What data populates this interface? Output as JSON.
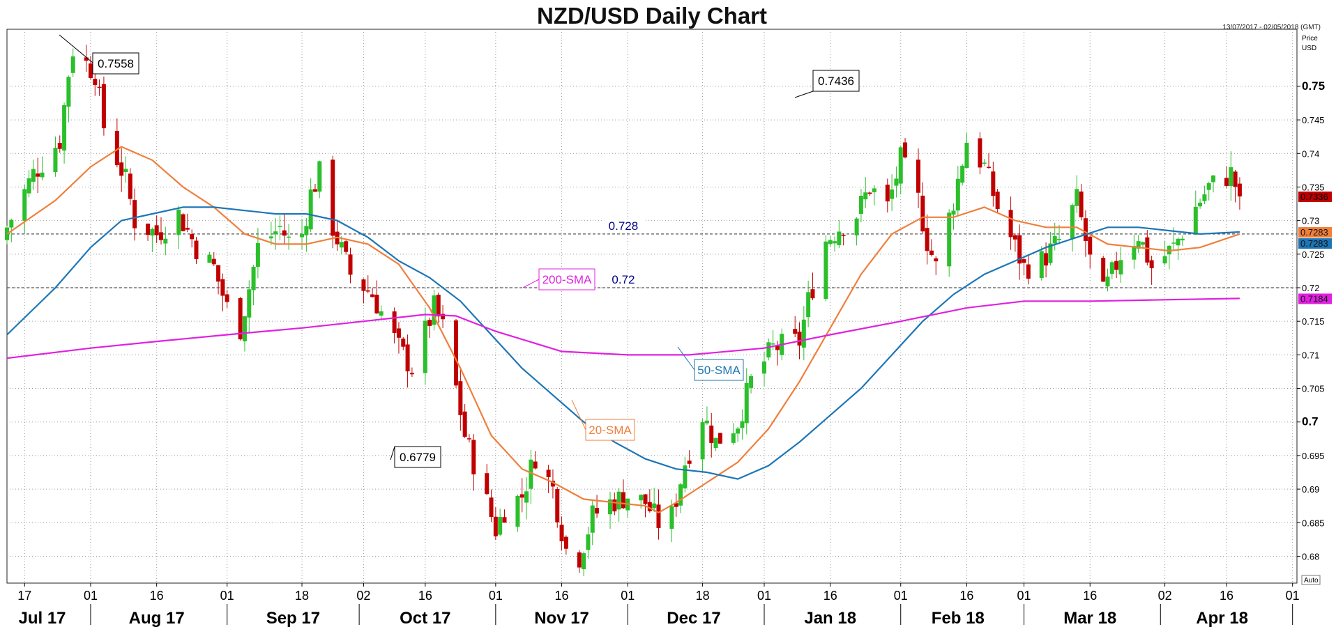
{
  "header": {
    "title": "NZD/USD Daily Chart",
    "date_range": "13/07/2017 - 02/05/2018 (GMT)"
  },
  "colors": {
    "bull": "#2bbf2b",
    "bear": "#c00000",
    "sma20": "#f07f3c",
    "sma50": "#1c76b6",
    "sma200": "#e020e0",
    "grid": "#9a9a9a",
    "hline_label": "#00008b"
  },
  "chart_data": {
    "type": "candlestick",
    "title": "NZD/USD Daily Chart",
    "ylabel_lines": [
      "Price",
      "USD"
    ],
    "y_axis_position": "right",
    "ylim": [
      0.676,
      0.7585
    ],
    "y_ticks": [
      {
        "value": 0.75,
        "label": "0.75",
        "bold": true
      },
      {
        "value": 0.745,
        "label": "0.745"
      },
      {
        "value": 0.74,
        "label": "0.74"
      },
      {
        "value": 0.735,
        "label": "0.735"
      },
      {
        "value": 0.73,
        "label": "0.73"
      },
      {
        "value": 0.725,
        "label": "0.725"
      },
      {
        "value": 0.72,
        "label": "0.72"
      },
      {
        "value": 0.715,
        "label": "0.715"
      },
      {
        "value": 0.71,
        "label": "0.71"
      },
      {
        "value": 0.705,
        "label": "0.705"
      },
      {
        "value": 0.7,
        "label": "0.7",
        "bold": true
      },
      {
        "value": 0.695,
        "label": "0.695"
      },
      {
        "value": 0.69,
        "label": "0.69"
      },
      {
        "value": 0.685,
        "label": "0.685"
      },
      {
        "value": 0.68,
        "label": "0.68"
      }
    ],
    "auto_label": "Auto",
    "x_range": [
      "2017-07-13",
      "2018-05-02"
    ],
    "x_day_ticks": [
      {
        "date": "2017-07-17",
        "label": "17"
      },
      {
        "date": "2017-08-01",
        "label": "01"
      },
      {
        "date": "2017-08-16",
        "label": "16"
      },
      {
        "date": "2017-09-01",
        "label": "01"
      },
      {
        "date": "2017-09-18",
        "label": "18"
      },
      {
        "date": "2017-10-02",
        "label": "02"
      },
      {
        "date": "2017-10-16",
        "label": "16"
      },
      {
        "date": "2017-11-01",
        "label": "01"
      },
      {
        "date": "2017-11-16",
        "label": "16"
      },
      {
        "date": "2017-12-01",
        "label": "01"
      },
      {
        "date": "2017-12-18",
        "label": "18"
      },
      {
        "date": "2018-01-01",
        "label": "01"
      },
      {
        "date": "2018-01-16",
        "label": "16"
      },
      {
        "date": "2018-02-01",
        "label": "01"
      },
      {
        "date": "2018-02-16",
        "label": "16"
      },
      {
        "date": "2018-03-01",
        "label": "01"
      },
      {
        "date": "2018-03-16",
        "label": "16"
      },
      {
        "date": "2018-04-02",
        "label": "02"
      },
      {
        "date": "2018-04-16",
        "label": "16"
      },
      {
        "date": "2018-05-01",
        "label": "01"
      }
    ],
    "x_month_labels": [
      {
        "date": "2017-07-21",
        "label": "Jul 17"
      },
      {
        "date": "2017-08-16",
        "label": "Aug 17"
      },
      {
        "date": "2017-09-16",
        "label": "Sep 17"
      },
      {
        "date": "2017-10-16",
        "label": "Oct 17"
      },
      {
        "date": "2017-11-16",
        "label": "Nov 17"
      },
      {
        "date": "2017-12-16",
        "label": "Dec 17"
      },
      {
        "date": "2018-01-16",
        "label": "Jan 18"
      },
      {
        "date": "2018-02-14",
        "label": "Feb 18"
      },
      {
        "date": "2018-03-16",
        "label": "Mar 18"
      },
      {
        "date": "2018-04-15",
        "label": "Apr 18"
      }
    ],
    "x_month_separators": [
      "2017-08-01",
      "2017-09-01",
      "2017-10-01",
      "2017-11-01",
      "2017-12-01",
      "2018-01-01",
      "2018-02-01",
      "2018-03-01",
      "2018-04-01",
      "2018-05-01"
    ],
    "horizontal_levels": [
      {
        "value": 0.728,
        "label": "0.728",
        "label_date": "2017-11-30"
      },
      {
        "value": 0.72,
        "label": "0.72",
        "label_date": "2017-11-30"
      }
    ],
    "candle_anchors": [
      [
        "2017-07-13",
        0.729
      ],
      [
        "2017-07-19",
        0.737
      ],
      [
        "2017-07-25",
        0.742
      ],
      [
        "2017-07-27",
        0.752
      ],
      [
        "2017-07-28",
        0.7555
      ],
      [
        "2017-08-02",
        0.752
      ],
      [
        "2017-08-04",
        0.744
      ],
      [
        "2017-08-09",
        0.736
      ],
      [
        "2017-08-11",
        0.73
      ],
      [
        "2017-08-16",
        0.728
      ],
      [
        "2017-08-21",
        0.731
      ],
      [
        "2017-08-25",
        0.726
      ],
      [
        "2017-08-29",
        0.723
      ],
      [
        "2017-09-01",
        0.717
      ],
      [
        "2017-09-04",
        0.714
      ],
      [
        "2017-09-08",
        0.726
      ],
      [
        "2017-09-13",
        0.729
      ],
      [
        "2017-09-15",
        0.727
      ],
      [
        "2017-09-18",
        0.728
      ],
      [
        "2017-09-20",
        0.734
      ],
      [
        "2017-09-22",
        0.737
      ],
      [
        "2017-09-25",
        0.729
      ],
      [
        "2017-09-29",
        0.722
      ],
      [
        "2017-10-04",
        0.719
      ],
      [
        "2017-10-10",
        0.711
      ],
      [
        "2017-10-13",
        0.708
      ],
      [
        "2017-10-18",
        0.717
      ],
      [
        "2017-10-20",
        0.714
      ],
      [
        "2017-10-23",
        0.705
      ],
      [
        "2017-10-25",
        0.698
      ],
      [
        "2017-10-30",
        0.688
      ],
      [
        "2017-11-01",
        0.684
      ],
      [
        "2017-11-03",
        0.687
      ],
      [
        "2017-11-07",
        0.689
      ],
      [
        "2017-11-10",
        0.695
      ],
      [
        "2017-11-14",
        0.69
      ],
      [
        "2017-11-17",
        0.681
      ],
      [
        "2017-11-20",
        0.68
      ],
      [
        "2017-11-23",
        0.686
      ],
      [
        "2017-11-27",
        0.688
      ],
      [
        "2017-12-01",
        0.689
      ],
      [
        "2017-12-05",
        0.688
      ],
      [
        "2017-12-08",
        0.685
      ],
      [
        "2017-12-11",
        0.686
      ],
      [
        "2017-12-14",
        0.694
      ],
      [
        "2017-12-18",
        0.701
      ],
      [
        "2017-12-21",
        0.697
      ],
      [
        "2017-12-26",
        0.7
      ],
      [
        "2017-12-29",
        0.706
      ],
      [
        "2018-01-03",
        0.711
      ],
      [
        "2018-01-09",
        0.712
      ],
      [
        "2018-01-11",
        0.718
      ],
      [
        "2018-01-15",
        0.727
      ],
      [
        "2018-01-18",
        0.729
      ],
      [
        "2018-01-22",
        0.731
      ],
      [
        "2018-01-25",
        0.735
      ],
      [
        "2018-01-29",
        0.732
      ],
      [
        "2018-02-01",
        0.739
      ],
      [
        "2018-02-05",
        0.733
      ],
      [
        "2018-02-07",
        0.727
      ],
      [
        "2018-02-09",
        0.723
      ],
      [
        "2018-02-13",
        0.733
      ],
      [
        "2018-02-16",
        0.742
      ],
      [
        "2018-02-20",
        0.738
      ],
      [
        "2018-02-23",
        0.732
      ],
      [
        "2018-02-27",
        0.726
      ],
      [
        "2018-03-01",
        0.723
      ],
      [
        "2018-03-05",
        0.724
      ],
      [
        "2018-03-09",
        0.727
      ],
      [
        "2018-03-13",
        0.733
      ],
      [
        "2018-03-16",
        0.724
      ],
      [
        "2018-03-19",
        0.719
      ],
      [
        "2018-03-23",
        0.725
      ],
      [
        "2018-03-27",
        0.728
      ],
      [
        "2018-03-30",
        0.723
      ],
      [
        "2018-04-04",
        0.726
      ],
      [
        "2018-04-09",
        0.732
      ],
      [
        "2018-04-12",
        0.735
      ],
      [
        "2018-04-17",
        0.737
      ],
      [
        "2018-04-19",
        0.7336
      ]
    ],
    "series": [
      {
        "name": "20-SMA",
        "color": "#f07f3c",
        "points": [
          [
            "2017-07-13",
            0.728
          ],
          [
            "2017-07-24",
            0.733
          ],
          [
            "2017-08-01",
            0.738
          ],
          [
            "2017-08-08",
            0.741
          ],
          [
            "2017-08-15",
            0.739
          ],
          [
            "2017-08-22",
            0.735
          ],
          [
            "2017-08-29",
            0.732
          ],
          [
            "2017-09-05",
            0.728
          ],
          [
            "2017-09-12",
            0.7265
          ],
          [
            "2017-09-19",
            0.7265
          ],
          [
            "2017-09-26",
            0.7275
          ],
          [
            "2017-10-03",
            0.7265
          ],
          [
            "2017-10-10",
            0.7235
          ],
          [
            "2017-10-17",
            0.717
          ],
          [
            "2017-10-24",
            0.708
          ],
          [
            "2017-10-31",
            0.698
          ],
          [
            "2017-11-07",
            0.693
          ],
          [
            "2017-11-14",
            0.691
          ],
          [
            "2017-11-21",
            0.6885
          ],
          [
            "2017-11-28",
            0.688
          ],
          [
            "2017-12-05",
            0.6875
          ],
          [
            "2017-12-08",
            0.6865
          ],
          [
            "2017-12-12",
            0.688
          ],
          [
            "2017-12-19",
            0.691
          ],
          [
            "2017-12-26",
            0.694
          ],
          [
            "2018-01-02",
            0.699
          ],
          [
            "2018-01-09",
            0.706
          ],
          [
            "2018-01-16",
            0.714
          ],
          [
            "2018-01-23",
            0.722
          ],
          [
            "2018-01-30",
            0.728
          ],
          [
            "2018-02-06",
            0.7305
          ],
          [
            "2018-02-13",
            0.7305
          ],
          [
            "2018-02-20",
            0.732
          ],
          [
            "2018-02-27",
            0.73
          ],
          [
            "2018-03-06",
            0.729
          ],
          [
            "2018-03-13",
            0.729
          ],
          [
            "2018-03-20",
            0.7265
          ],
          [
            "2018-03-27",
            0.726
          ],
          [
            "2018-04-03",
            0.7255
          ],
          [
            "2018-04-10",
            0.726
          ],
          [
            "2018-04-19",
            0.728
          ]
        ]
      },
      {
        "name": "50-SMA",
        "color": "#1c76b6",
        "points": [
          [
            "2017-07-13",
            0.713
          ],
          [
            "2017-07-24",
            0.72
          ],
          [
            "2017-08-01",
            0.726
          ],
          [
            "2017-08-08",
            0.73
          ],
          [
            "2017-08-15",
            0.731
          ],
          [
            "2017-08-22",
            0.732
          ],
          [
            "2017-08-29",
            0.732
          ],
          [
            "2017-09-05",
            0.7315
          ],
          [
            "2017-09-12",
            0.731
          ],
          [
            "2017-09-19",
            0.731
          ],
          [
            "2017-09-26",
            0.73
          ],
          [
            "2017-10-03",
            0.7275
          ],
          [
            "2017-10-10",
            0.724
          ],
          [
            "2017-10-17",
            0.7215
          ],
          [
            "2017-10-24",
            0.718
          ],
          [
            "2017-10-31",
            0.713
          ],
          [
            "2017-11-07",
            0.708
          ],
          [
            "2017-11-14",
            0.704
          ],
          [
            "2017-11-21",
            0.7
          ],
          [
            "2017-11-28",
            0.697
          ],
          [
            "2017-12-05",
            0.6945
          ],
          [
            "2017-12-12",
            0.693
          ],
          [
            "2017-12-19",
            0.6925
          ],
          [
            "2017-12-26",
            0.6915
          ],
          [
            "2018-01-02",
            0.6935
          ],
          [
            "2018-01-09",
            0.697
          ],
          [
            "2018-01-16",
            0.701
          ],
          [
            "2018-01-23",
            0.705
          ],
          [
            "2018-01-30",
            0.71
          ],
          [
            "2018-02-06",
            0.715
          ],
          [
            "2018-02-13",
            0.719
          ],
          [
            "2018-02-20",
            0.722
          ],
          [
            "2018-02-27",
            0.724
          ],
          [
            "2018-03-06",
            0.726
          ],
          [
            "2018-03-13",
            0.7275
          ],
          [
            "2018-03-20",
            0.729
          ],
          [
            "2018-03-27",
            0.729
          ],
          [
            "2018-04-03",
            0.7285
          ],
          [
            "2018-04-10",
            0.728
          ],
          [
            "2018-04-19",
            0.7283
          ]
        ]
      },
      {
        "name": "200-SMA",
        "color": "#e020e0",
        "points": [
          [
            "2017-07-13",
            0.7095
          ],
          [
            "2017-08-01",
            0.711
          ],
          [
            "2017-08-16",
            0.712
          ],
          [
            "2017-09-01",
            0.713
          ],
          [
            "2017-09-18",
            0.714
          ],
          [
            "2017-10-02",
            0.715
          ],
          [
            "2017-10-16",
            0.716
          ],
          [
            "2017-10-23",
            0.7158
          ],
          [
            "2017-11-01",
            0.7135
          ],
          [
            "2017-11-16",
            0.7105
          ],
          [
            "2017-12-01",
            0.71
          ],
          [
            "2017-12-15",
            0.71
          ],
          [
            "2018-01-01",
            0.711
          ],
          [
            "2018-01-16",
            0.713
          ],
          [
            "2018-02-01",
            0.715
          ],
          [
            "2018-02-16",
            0.717
          ],
          [
            "2018-03-01",
            0.718
          ],
          [
            "2018-03-16",
            0.718
          ],
          [
            "2018-04-02",
            0.7182
          ],
          [
            "2018-04-19",
            0.7184
          ]
        ]
      }
    ],
    "callouts": [
      {
        "label": "0.7558",
        "date": "2017-07-28",
        "value": 0.7558
      },
      {
        "label": "0.7436",
        "date": "2018-02-16",
        "value": 0.7436
      },
      {
        "label": "0.6779",
        "date": "2017-11-17",
        "value": 0.6779
      }
    ],
    "series_labels": [
      {
        "label": "200-SMA",
        "series": "200-SMA"
      },
      {
        "label": "50-SMA",
        "series": "50-SMA"
      },
      {
        "label": "20-SMA",
        "series": "20-SMA"
      }
    ],
    "price_tags": [
      {
        "label": "0.7336",
        "value": 0.7336,
        "color": "#c00000"
      },
      {
        "label": "0.7283",
        "value": 0.7283,
        "color": "#f07f3c"
      },
      {
        "label": "0.7283",
        "value": 0.7283,
        "color": "#1c76b6"
      },
      {
        "label": "0.7184",
        "value": 0.7184,
        "color": "#e020e0"
      }
    ]
  }
}
